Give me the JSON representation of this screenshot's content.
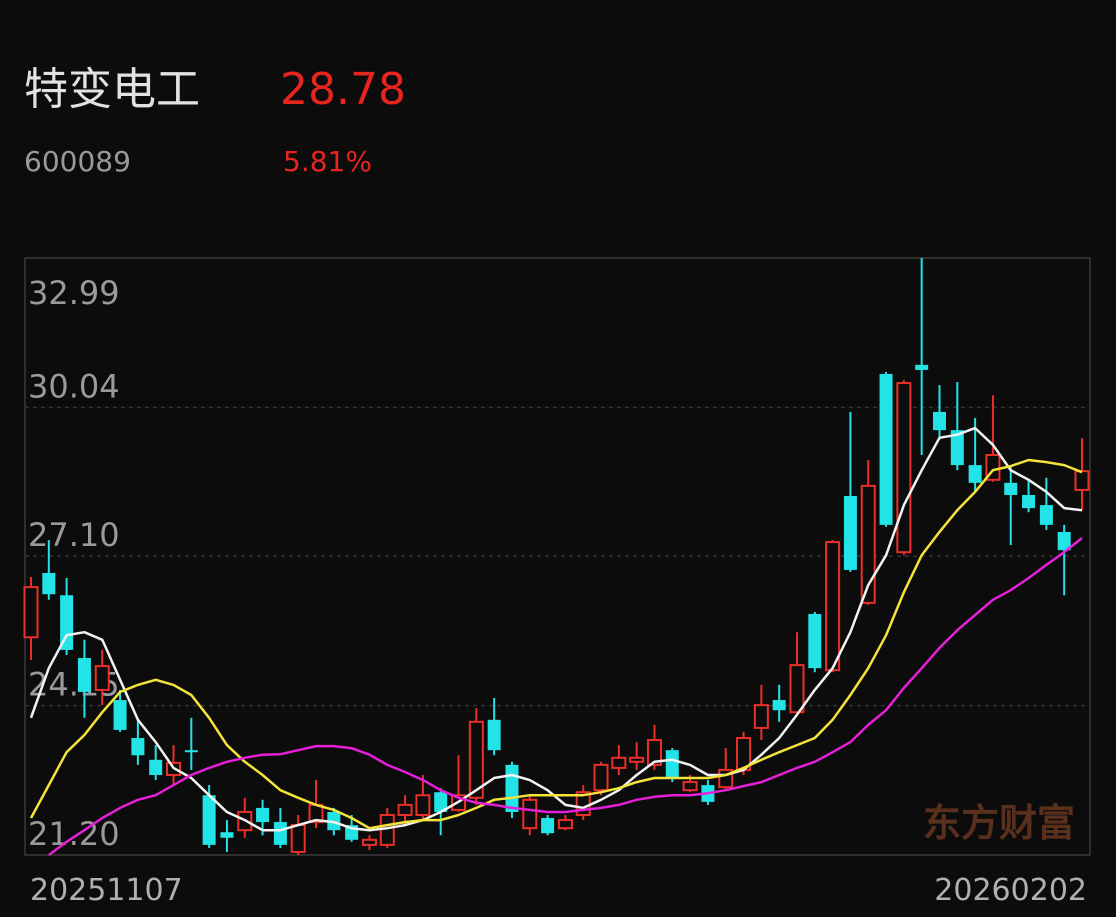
{
  "quote": {
    "name": "特变电工",
    "price": 28.78,
    "code": "600089",
    "change_pct": 5.81,
    "change_pct_label": "5.81%"
  },
  "chart_data": {
    "type": "candlestick",
    "categories": [
      "20251107",
      null,
      null,
      null,
      null,
      null,
      null,
      null,
      null,
      null,
      null,
      null,
      null,
      null,
      null,
      null,
      null,
      null,
      null,
      null,
      null,
      null,
      null,
      null,
      null,
      null,
      null,
      null,
      null,
      null,
      null,
      null,
      null,
      null,
      null,
      null,
      null,
      null,
      null,
      null,
      null,
      null,
      null,
      null,
      null,
      null,
      null,
      null,
      null,
      null,
      null,
      null,
      null,
      null,
      null,
      null,
      null,
      null,
      null,
      "20260202"
    ],
    "open": [
      25.5,
      26.77,
      26.33,
      25.09,
      24.46,
      24.26,
      23.51,
      23.08,
      22.78,
      23.27,
      22.38,
      21.65,
      21.69,
      22.13,
      21.85,
      21.26,
      21.85,
      22.05,
      21.79,
      21.4,
      21.4,
      21.99,
      21.99,
      22.44,
      22.09,
      22.33,
      23.87,
      22.98,
      21.73,
      21.93,
      21.73,
      21.99,
      22.48,
      22.92,
      23.04,
      22.98,
      23.27,
      22.48,
      22.58,
      22.54,
      22.88,
      23.71,
      24.26,
      24.02,
      25.96,
      24.85,
      28.29,
      26.18,
      30.7,
      27.18,
      30.88,
      29.95,
      29.59,
      28.9,
      28.61,
      28.55,
      28.31,
      28.11,
      27.58,
      28.41
    ],
    "high": [
      26.69,
      27.42,
      26.67,
      25.45,
      25.25,
      24.46,
      23.87,
      23.37,
      23.37,
      23.91,
      22.58,
      21.89,
      22.33,
      22.29,
      22.13,
      21.99,
      22.68,
      22.13,
      21.99,
      21.59,
      22.13,
      22.38,
      22.78,
      22.52,
      23.17,
      24.1,
      24.3,
      23.04,
      22.38,
      21.99,
      21.99,
      22.58,
      23.04,
      23.37,
      23.43,
      23.77,
      23.31,
      22.78,
      22.68,
      23.31,
      23.63,
      24.56,
      24.56,
      25.6,
      26.0,
      27.42,
      29.95,
      29.0,
      30.74,
      30.58,
      32.99,
      30.48,
      30.54,
      29.83,
      30.28,
      28.9,
      28.61,
      28.65,
      27.72,
      29.43
    ],
    "low": [
      25.05,
      26.24,
      25.15,
      23.91,
      24.16,
      23.63,
      22.98,
      22.68,
      22.58,
      22.88,
      21.34,
      21.26,
      21.54,
      21.59,
      21.34,
      21.2,
      21.73,
      21.59,
      21.46,
      21.3,
      21.34,
      21.79,
      21.89,
      21.59,
      22.05,
      22.19,
      23.17,
      21.93,
      21.59,
      21.59,
      21.69,
      21.89,
      22.38,
      22.78,
      22.88,
      22.88,
      22.64,
      22.44,
      22.19,
      22.48,
      22.78,
      23.47,
      23.83,
      23.96,
      24.81,
      24.81,
      26.79,
      26.14,
      27.68,
      27.12,
      29.1,
      29.4,
      28.8,
      28.37,
      28.57,
      27.32,
      27.97,
      27.62,
      26.33,
      28.01
    ],
    "close": [
      26.49,
      26.35,
      25.25,
      24.42,
      24.93,
      23.67,
      23.17,
      22.78,
      23.02,
      23.23,
      21.4,
      21.54,
      22.05,
      21.85,
      21.4,
      21.79,
      22.19,
      21.69,
      21.5,
      21.5,
      21.99,
      22.19,
      22.38,
      22.05,
      22.38,
      23.83,
      23.27,
      22.05,
      22.29,
      21.63,
      21.89,
      22.44,
      22.98,
      23.12,
      23.12,
      23.47,
      22.72,
      22.64,
      22.25,
      22.88,
      23.51,
      24.16,
      24.06,
      24.95,
      24.89,
      27.38,
      26.83,
      28.49,
      27.72,
      30.52,
      30.78,
      29.59,
      28.9,
      28.55,
      29.1,
      28.31,
      28.05,
      27.72,
      27.22,
      28.78
    ],
    "up_color": "#ea2f28",
    "down_color": "#22e4e6",
    "series": [
      {
        "color": "#f2f2f2",
        "values": [
          23.91,
          24.89,
          25.54,
          25.6,
          25.45,
          24.66,
          23.87,
          23.43,
          22.92,
          22.72,
          22.38,
          22.05,
          21.89,
          21.69,
          21.69,
          21.79,
          21.89,
          21.85,
          21.73,
          21.69,
          21.73,
          21.79,
          21.89,
          22.05,
          22.25,
          22.48,
          22.72,
          22.78,
          22.68,
          22.48,
          22.19,
          22.13,
          22.29,
          22.48,
          22.78,
          23.04,
          23.08,
          22.98,
          22.78,
          22.78,
          22.88,
          23.18,
          23.51,
          23.97,
          24.46,
          24.89,
          25.6,
          26.53,
          27.12,
          28.11,
          28.8,
          29.44,
          29.5,
          29.63,
          29.3,
          28.8,
          28.61,
          28.37,
          28.05,
          28.01
        ]
      },
      {
        "color": "#f4e33a",
        "values": [
          21.93,
          22.58,
          23.23,
          23.57,
          24.02,
          24.42,
          24.56,
          24.66,
          24.56,
          24.36,
          23.91,
          23.37,
          23.04,
          22.78,
          22.48,
          22.33,
          22.19,
          22.09,
          21.93,
          21.73,
          21.79,
          21.85,
          21.89,
          21.89,
          21.99,
          22.13,
          22.29,
          22.33,
          22.38,
          22.38,
          22.38,
          22.38,
          22.44,
          22.52,
          22.64,
          22.72,
          22.72,
          22.72,
          22.72,
          22.78,
          22.92,
          23.08,
          23.23,
          23.37,
          23.51,
          23.87,
          24.36,
          24.89,
          25.54,
          26.39,
          27.12,
          27.58,
          28.01,
          28.37,
          28.8,
          28.88,
          29.0,
          28.96,
          28.9,
          28.76
        ]
      },
      {
        "color": "#e61fd8",
        "values": [
          null,
          21.2,
          21.46,
          21.69,
          21.93,
          22.13,
          22.29,
          22.38,
          22.58,
          22.78,
          22.92,
          23.04,
          23.12,
          23.18,
          23.19,
          23.27,
          23.35,
          23.35,
          23.31,
          23.18,
          22.98,
          22.84,
          22.68,
          22.48,
          22.33,
          22.23,
          22.19,
          22.13,
          22.09,
          22.05,
          22.05,
          22.09,
          22.13,
          22.19,
          22.29,
          22.35,
          22.38,
          22.38,
          22.42,
          22.48,
          22.56,
          22.64,
          22.78,
          22.92,
          23.04,
          23.23,
          23.43,
          23.77,
          24.06,
          24.5,
          24.89,
          25.29,
          25.64,
          25.94,
          26.24,
          26.43,
          26.67,
          26.93,
          27.18,
          27.46
        ]
      }
    ],
    "ylim": [
      21.2,
      32.99
    ],
    "yticks": [
      {
        "value": 21.2,
        "label": "21.20"
      },
      24.15,
      {
        "value": 27.1,
        "label": "27.10"
      },
      30.04,
      32.99
    ],
    "grid": true,
    "watermark": "东方财富"
  }
}
